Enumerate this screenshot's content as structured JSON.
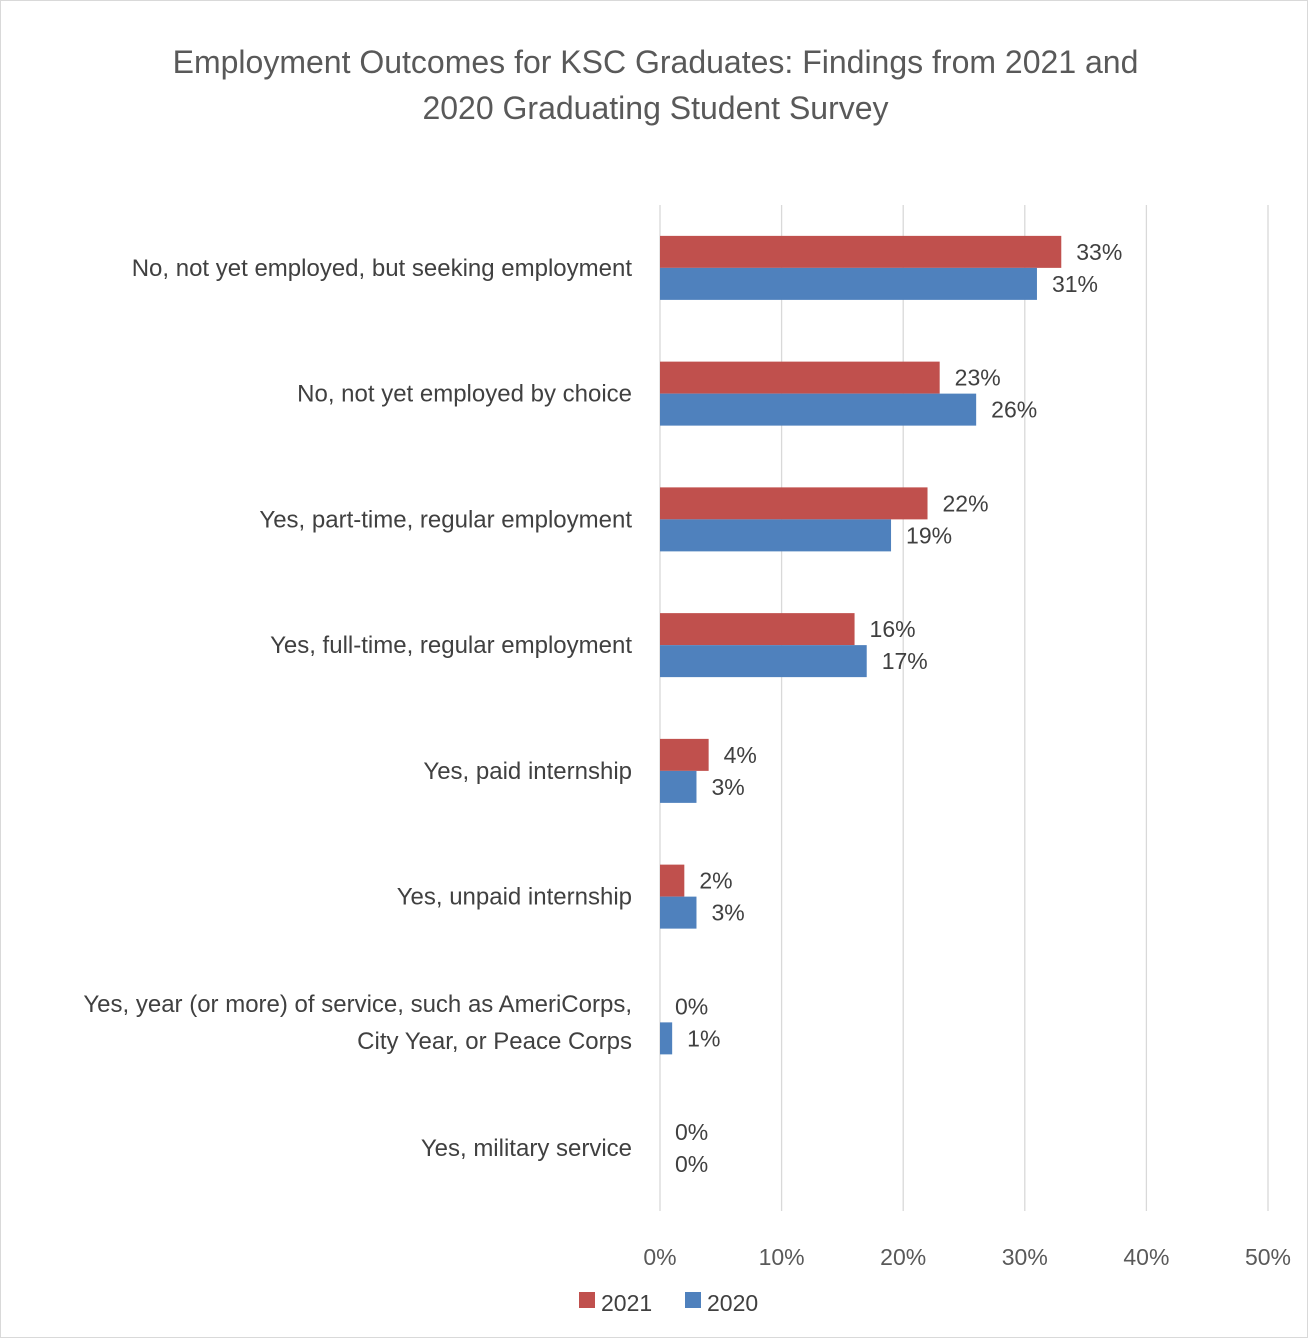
{
  "title_lines": [
    "Employment Outcomes for KSC Graduates: Findings from 2021 and",
    "2020 Graduating Student Survey"
  ],
  "chart_data": {
    "type": "bar",
    "orientation": "horizontal",
    "title": "Employment Outcomes for KSC Graduates: Findings from 2021 and 2020 Graduating Student Survey",
    "categories": [
      [
        "No, not yet employed, but seeking employment"
      ],
      [
        "No, not yet employed by choice"
      ],
      [
        "Yes, part-time, regular employment"
      ],
      [
        "Yes, full-time, regular employment"
      ],
      [
        "Yes, paid internship"
      ],
      [
        "Yes, unpaid internship"
      ],
      [
        "Yes, year (or more) of service, such as AmeriCorps,",
        "City Year, or Peace Corps"
      ],
      [
        "Yes, military service"
      ]
    ],
    "series": [
      {
        "name": "2021",
        "color": "#c0504d",
        "values": [
          33,
          23,
          22,
          16,
          4,
          2,
          0,
          0
        ],
        "labels": [
          "33%",
          "23%",
          "22%",
          "16%",
          "4%",
          "2%",
          "0%",
          "0%"
        ]
      },
      {
        "name": "2020",
        "color": "#4f81bd",
        "values": [
          31,
          26,
          19,
          17,
          3,
          3,
          1,
          0
        ],
        "labels": [
          "31%",
          "26%",
          "19%",
          "17%",
          "3%",
          "3%",
          "1%",
          "0%"
        ]
      }
    ],
    "x_ticks": [
      "0%",
      "10%",
      "20%",
      "30%",
      "40%",
      "50%"
    ],
    "xlim": [
      0,
      50
    ],
    "grid": true,
    "legend_position": "bottom"
  }
}
